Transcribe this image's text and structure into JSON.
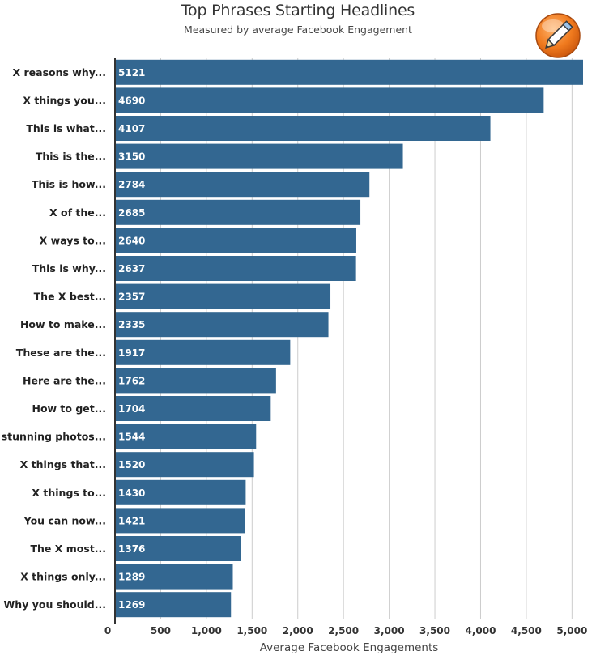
{
  "chart_data": {
    "type": "bar",
    "orientation": "horizontal",
    "title": "Top Phrases Starting Headlines",
    "subtitle": "Measured by average Facebook Engagement",
    "xlabel": "Average Facebook Engagements",
    "ylabel": "",
    "xlim": [
      0,
      5121
    ],
    "grid": true,
    "colors": {
      "bar": "#336791",
      "grid": "#cccccc",
      "axis": "#333333"
    },
    "categories": [
      "X reasons why...",
      "X things you...",
      "This is what...",
      "This is the...",
      "This is how...",
      "X of the...",
      "X ways to...",
      "This is why...",
      "The X best...",
      "How to make...",
      "These are the...",
      "Here are the...",
      "How to get...",
      "X stunning photos...",
      "X things that...",
      "X things to...",
      "You can now...",
      "The X most...",
      "X things only...",
      "Why you should..."
    ],
    "values": [
      5121,
      4690,
      4107,
      3150,
      2784,
      2685,
      2640,
      2637,
      2357,
      2335,
      1917,
      1762,
      1704,
      1544,
      1520,
      1430,
      1421,
      1376,
      1289,
      1269
    ],
    "ticks": [
      0,
      500,
      1000,
      1500,
      2000,
      2500,
      3000,
      3500,
      4000,
      4500,
      5000
    ],
    "tick_labels": [
      "0",
      "500",
      "1,000",
      "1,500",
      "2,000",
      "2,500",
      "3,000",
      "3,500",
      "4,000",
      "4,500",
      "5,000"
    ]
  },
  "logo": {
    "icon": "pencil-icon"
  }
}
